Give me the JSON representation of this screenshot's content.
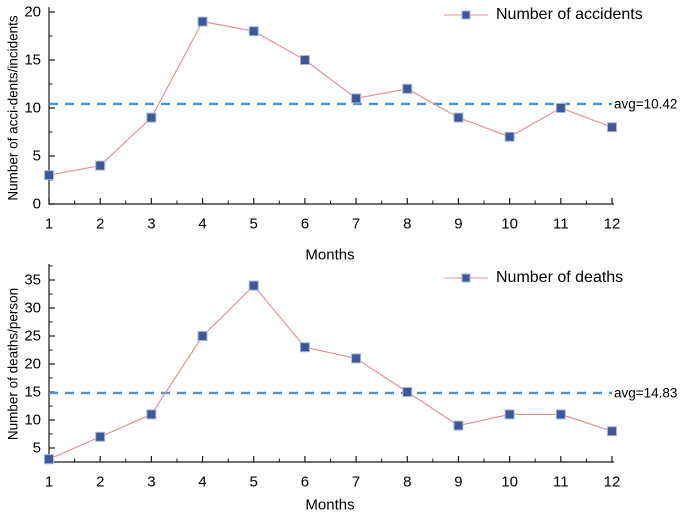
{
  "page": {
    "background": "#ffffff",
    "description_visible_text_only": true
  },
  "colors": {
    "marker_fill": "#3e5795",
    "marker_edge": "#a3badb",
    "series_line": "#e09496",
    "avg_line": "#4494d4",
    "axis": "#1a1a1a",
    "text": "#000000"
  },
  "chart_data": [
    {
      "type": "line",
      "title": "",
      "x": [
        1,
        2,
        3,
        4,
        5,
        6,
        7,
        8,
        9,
        10,
        11,
        12
      ],
      "series": [
        {
          "name": "Number of accidents",
          "values": [
            3,
            4,
            9,
            19,
            18,
            15,
            11,
            12,
            9,
            7,
            10,
            8
          ]
        }
      ],
      "xlabel": "Months",
      "ylabel": "Number of acci-dents/incidents",
      "ylim": [
        0,
        20
      ],
      "yticks": [
        0,
        5,
        10,
        15,
        20
      ],
      "yticks_minor": [
        2.5,
        7.5,
        12.5,
        17.5
      ],
      "avg_value": 10.42,
      "avg_label": "avg=10.42",
      "legend_position": "top-right",
      "grid": false,
      "marker": "square"
    },
    {
      "type": "line",
      "title": "",
      "x": [
        1,
        2,
        3,
        4,
        5,
        6,
        7,
        8,
        9,
        10,
        11,
        12
      ],
      "series": [
        {
          "name": "Number of deaths",
          "values": [
            3,
            7,
            11,
            25,
            34,
            23,
            21,
            15,
            9,
            11,
            11,
            8
          ]
        }
      ],
      "xlabel": "Months",
      "ylabel": "Number of deaths/person",
      "ylim": [
        2.5,
        37.5
      ],
      "yticks": [
        5,
        10,
        15,
        20,
        25,
        30,
        35
      ],
      "yticks_minor": [
        7.5,
        12.5,
        17.5,
        22.5,
        27.5,
        32.5,
        37.5
      ],
      "avg_value": 14.83,
      "avg_label": "avg=14.83",
      "legend_position": "top-right",
      "grid": false,
      "marker": "square"
    }
  ]
}
